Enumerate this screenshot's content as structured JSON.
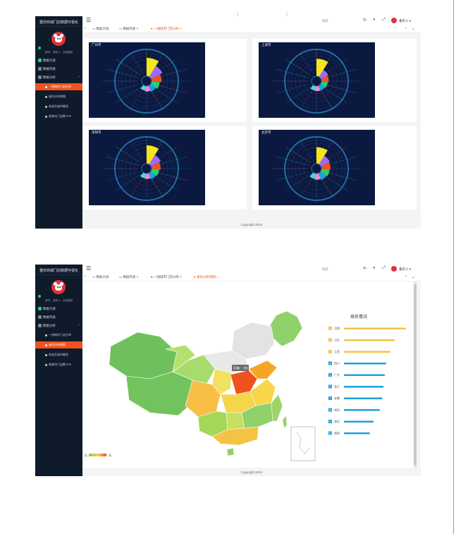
{
  "window": {
    "title": "重庆商城门店数据可视化"
  },
  "sidebar": {
    "title": "重庆商城门店数据可视化",
    "user_text": "你好!，重庆人，欢迎登录",
    "items": [
      {
        "label": "数据大屏",
        "icon": "dashboard-icon"
      },
      {
        "label": "数据列表",
        "icon": "list-icon"
      },
      {
        "label": "数据分析",
        "icon": "analysis-icon",
        "expanded": true
      }
    ],
    "subitems": [
      "一线城市门店分布",
      "省份分布地图",
      "各省及省市概览",
      "各城市门店数TOP"
    ]
  },
  "topbar": {
    "menu_icon": "menu-icon",
    "search_placeholder": "搜索",
    "icons": [
      "refresh-icon",
      "notification-icon",
      "fullscreen-icon"
    ],
    "user_name": "重庆人"
  },
  "screen1": {
    "tabs": [
      "数据大屏",
      "数据列表",
      "一线城市门店分布"
    ],
    "active_tab": 2,
    "footer": "Copyright 2024",
    "charts": [
      {
        "title": "广州市"
      },
      {
        "title": "上海市"
      },
      {
        "title": "深圳市"
      },
      {
        "title": "北京市"
      }
    ]
  },
  "screen2": {
    "tabs": [
      "数据大屏",
      "数据列表",
      "一线城市门店分布",
      "省份分布地图"
    ],
    "active_tab": 3,
    "footer": "Copyright 2024",
    "map": {
      "ranking_title": "排名情况",
      "tooltip": "河南：7份",
      "legend_low": "低",
      "legend_high": "高",
      "ranking": [
        {
          "rank": "1",
          "name": "河南",
          "value": 100
        },
        {
          "rank": "2",
          "name": "山东",
          "value": 82
        },
        {
          "rank": "3",
          "name": "江西",
          "value": 75
        },
        {
          "rank": "4",
          "name": "四川",
          "value": 68
        },
        {
          "rank": "5",
          "name": "广东",
          "value": 66
        },
        {
          "rank": "6",
          "name": "浙江",
          "value": 64
        },
        {
          "rank": "7",
          "name": "安徽",
          "value": 62
        },
        {
          "rank": "8",
          "name": "湖北",
          "value": 58
        },
        {
          "rank": "9",
          "name": "湖北",
          "value": 48
        },
        {
          "rank": "10",
          "name": "湖南",
          "value": 42
        }
      ],
      "colors": {
        "high": "#f0521f",
        "mid": "#f5a623",
        "low": "#7ccf5a",
        "bar_top": "#f5c343",
        "bar_rest": "#1e9fe0"
      }
    }
  },
  "colors": {
    "accent": "#f0521f",
    "sidebar_bg": "#0f1b2b",
    "chart_bg": "#0b1941"
  }
}
